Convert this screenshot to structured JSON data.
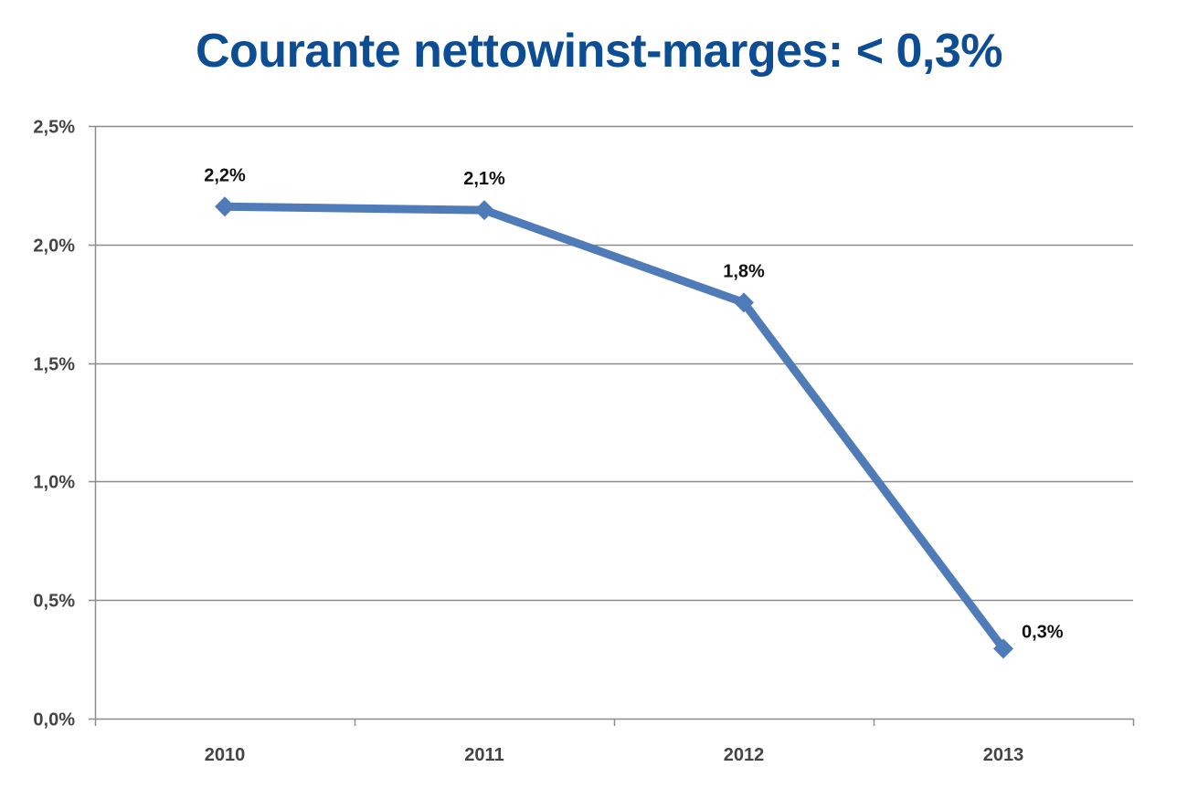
{
  "title": "Courante nettowinst-marges: < 0,3%",
  "colors": {
    "title": "#0d4d94",
    "series": "#4f7cb8",
    "grid": "#8c8c8c",
    "axis_text": "#444444",
    "label_text": "#111111"
  },
  "chart_data": {
    "type": "line",
    "title": "Courante nettowinst-marges: < 0,3%",
    "categories": [
      "2010",
      "2011",
      "2012",
      "2013"
    ],
    "series": [
      {
        "values": [
          2.16,
          2.145,
          1.755,
          0.295
        ],
        "labels": [
          "2,2%",
          "2,1%",
          "1,8%",
          "0,3%"
        ]
      }
    ],
    "ylim": [
      0,
      2.5
    ],
    "yticks": [
      0,
      0.5,
      1.0,
      1.5,
      2.0,
      2.5
    ],
    "ytick_labels": [
      "0,0%",
      "0,5%",
      "1,0%",
      "1,5%",
      "2,0%",
      "2,5%"
    ],
    "grid": true,
    "marker": "diamond",
    "xlabel": "",
    "ylabel": ""
  }
}
